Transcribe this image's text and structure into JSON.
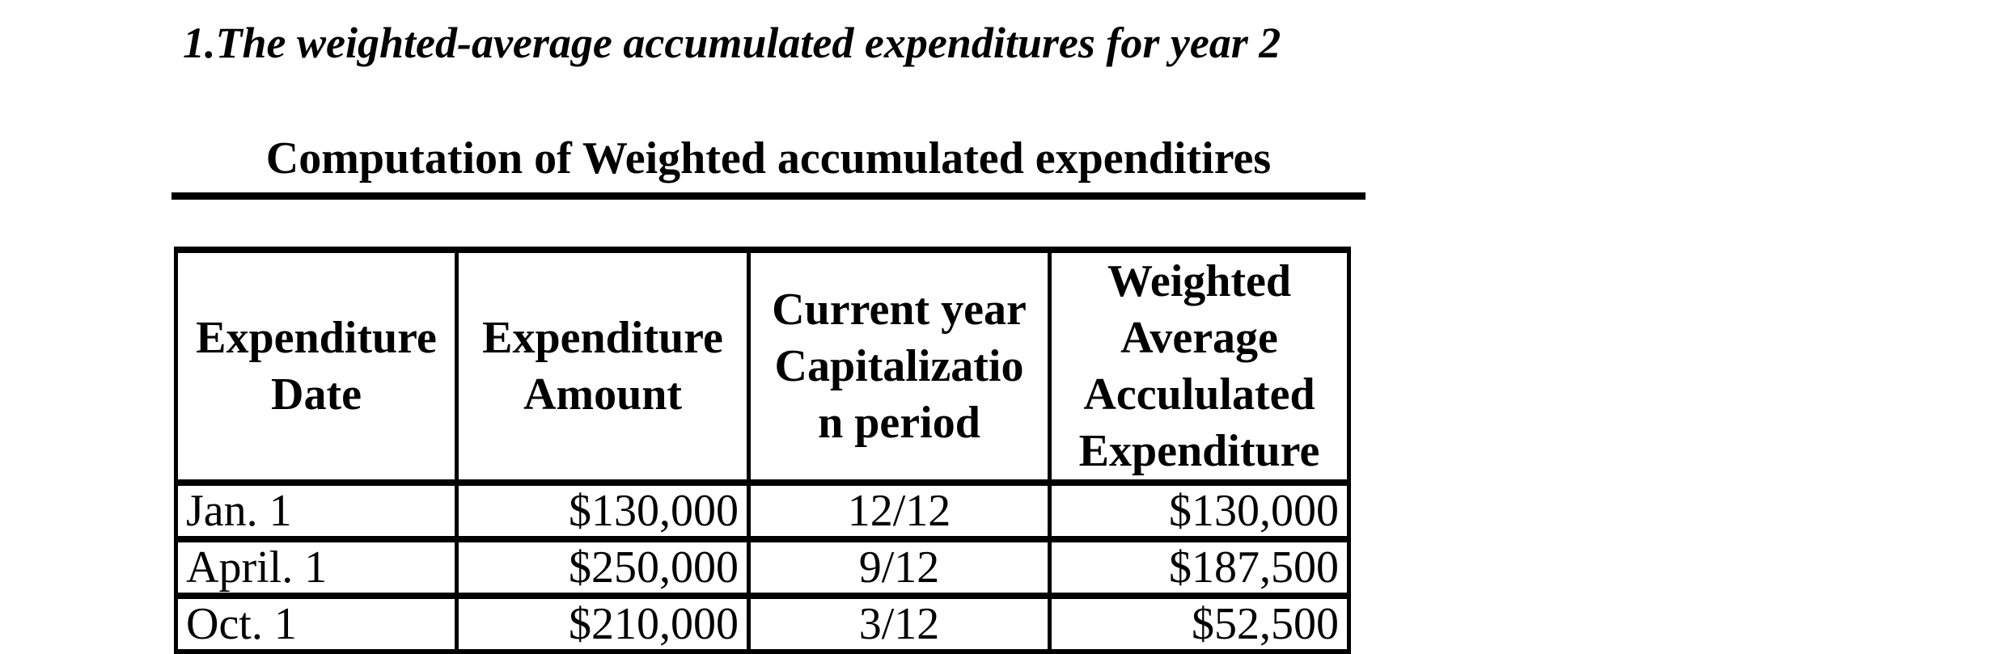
{
  "page": {
    "background_color": "#ffffff",
    "text_color": "#000000",
    "title": "1.The weighted-average accumulated expenditures for year 2",
    "table_caption": "Computation of Weighted accumulated expenditires"
  },
  "table": {
    "border_color": "#000000",
    "headers": [
      "Expenditure\nDate",
      "Expenditure\nAmount",
      "Current year\nCapitalizatio\nn period",
      "Weighted\nAverage\nAccululated\nExpenditure"
    ],
    "rows": [
      [
        "Jan. 1",
        "$130,000",
        "12/12",
        "$130,000"
      ],
      [
        "April. 1",
        "$250,000",
        "9/12",
        "$187,500"
      ],
      [
        "Oct. 1",
        "$210,000",
        "3/12",
        "$52,500"
      ]
    ]
  }
}
